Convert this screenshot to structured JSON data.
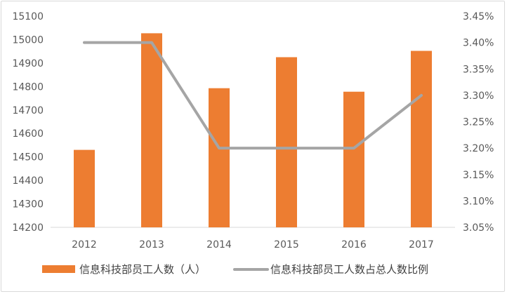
{
  "chart_data": {
    "type": "bar",
    "categories": [
      "2012",
      "2013",
      "2014",
      "2015",
      "2016",
      "2017"
    ],
    "series": [
      {
        "name": "信息科技部员工人数（人）",
        "type": "bar",
        "axis": "left",
        "color": "#ED7D31",
        "values": [
          14530,
          15027,
          14793,
          14925,
          14778,
          14952
        ]
      },
      {
        "name": "信息科技部员工人数占总人数比例",
        "type": "line",
        "axis": "right",
        "color": "#A5A5A5",
        "values": [
          0.034,
          0.034,
          0.032,
          0.032,
          0.032,
          0.033
        ]
      }
    ],
    "y_left": {
      "range": [
        14200,
        15100
      ],
      "ticks": [
        "14200",
        "14300",
        "14400",
        "14500",
        "14600",
        "14700",
        "14800",
        "14900",
        "15000",
        "15100"
      ]
    },
    "y_right": {
      "range": [
        0.0305,
        0.0345
      ],
      "ticks": [
        "3.05%",
        "3.10%",
        "3.15%",
        "3.20%",
        "3.25%",
        "3.30%",
        "3.35%",
        "3.40%",
        "3.45%"
      ]
    },
    "grid": false,
    "legend_position": "bottom"
  }
}
